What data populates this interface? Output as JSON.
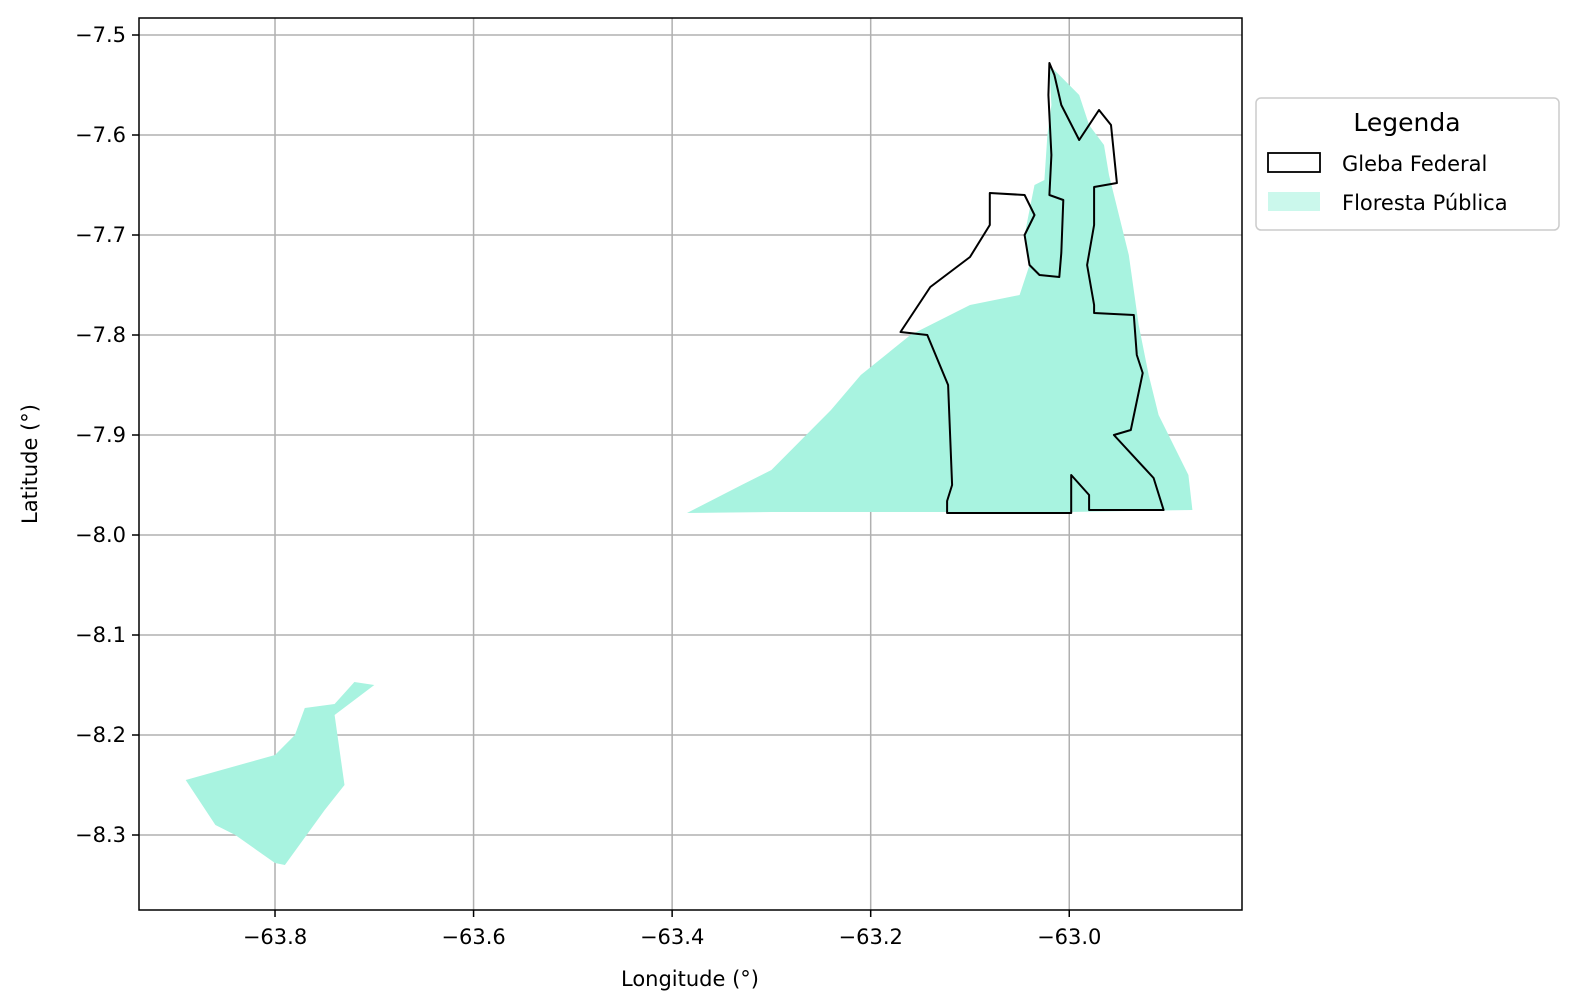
{
  "map": {
    "xlabel": "Longitude (°)",
    "ylabel": "Latitude (°)",
    "x_ticks": [
      -63.8,
      -63.6,
      -63.4,
      -63.2,
      -63.0
    ],
    "x_tick_labels": [
      "−63.8",
      "−63.6",
      "−63.4",
      "−63.2",
      "−63.0"
    ],
    "y_ticks": [
      -7.5,
      -7.6,
      -7.7,
      -7.8,
      -7.9,
      -8.0,
      -8.1,
      -8.2,
      -8.3
    ],
    "y_tick_labels": [
      "−7.5",
      "−7.6",
      "−7.7",
      "−7.8",
      "−7.9",
      "−8.0",
      "−8.1",
      "−8.2",
      "−8.3"
    ],
    "xlim": [
      -63.937,
      -62.826
    ],
    "ylim": [
      -8.375,
      -7.483
    ],
    "grid": true,
    "colors": {
      "forest": "#a8f3e0",
      "gleba_edge": "#000000",
      "grid": "#b0b0b0"
    },
    "legend": {
      "title": "Legenda",
      "placement": "outside upper-right",
      "items": [
        {
          "label": "Gleba Federal",
          "style": "outline"
        },
        {
          "label": "Floresta Pública",
          "style": "fill"
        }
      ]
    },
    "layers": {
      "floresta_publica": [
        [
          [
            -63.89,
            -8.245
          ],
          [
            -63.8,
            -8.22
          ],
          [
            -63.78,
            -8.2
          ],
          [
            -63.77,
            -8.173
          ],
          [
            -63.74,
            -8.169
          ],
          [
            -63.72,
            -8.147
          ],
          [
            -63.7,
            -8.15
          ],
          [
            -63.74,
            -8.18
          ],
          [
            -63.73,
            -8.25
          ],
          [
            -63.75,
            -8.275
          ],
          [
            -63.79,
            -8.33
          ],
          [
            -63.8,
            -8.328
          ],
          [
            -63.84,
            -8.3
          ],
          [
            -63.86,
            -8.29
          ]
        ],
        [
          [
            -63.385,
            -7.978
          ],
          [
            -63.33,
            -7.95
          ],
          [
            -63.3,
            -7.935
          ],
          [
            -63.27,
            -7.905
          ],
          [
            -63.24,
            -7.875
          ],
          [
            -63.21,
            -7.84
          ],
          [
            -63.16,
            -7.8
          ],
          [
            -63.1,
            -7.77
          ],
          [
            -63.05,
            -7.76
          ],
          [
            -63.04,
            -7.73
          ],
          [
            -63.045,
            -7.7
          ],
          [
            -63.04,
            -7.675
          ],
          [
            -63.035,
            -7.65
          ],
          [
            -63.025,
            -7.645
          ],
          [
            -63.022,
            -7.6
          ],
          [
            -63.018,
            -7.57
          ],
          [
            -63.02,
            -7.53
          ],
          [
            -63.01,
            -7.54
          ],
          [
            -62.99,
            -7.56
          ],
          [
            -62.98,
            -7.59
          ],
          [
            -62.965,
            -7.61
          ],
          [
            -62.96,
            -7.64
          ],
          [
            -62.95,
            -7.68
          ],
          [
            -62.94,
            -7.72
          ],
          [
            -62.93,
            -7.79
          ],
          [
            -62.92,
            -7.84
          ],
          [
            -62.91,
            -7.88
          ],
          [
            -62.895,
            -7.91
          ],
          [
            -62.88,
            -7.94
          ],
          [
            -62.876,
            -7.975
          ],
          [
            -63.0,
            -7.977
          ],
          [
            -63.1,
            -7.977
          ],
          [
            -63.2,
            -7.977
          ],
          [
            -63.3,
            -7.977
          ]
        ],
        [
          [
            -63.1,
            -7.93
          ],
          [
            -63.09,
            -7.95
          ],
          [
            -63.06,
            -7.95
          ],
          [
            -63.05,
            -7.92
          ],
          [
            -63.07,
            -7.905
          ]
        ],
        [
          [
            -63.25,
            -7.93
          ],
          [
            -63.22,
            -7.96
          ],
          [
            -63.19,
            -7.94
          ],
          [
            -63.2,
            -7.91
          ]
        ]
      ],
      "gleba_federal": [
        [
          [
            -63.17,
            -7.797
          ],
          [
            -63.14,
            -7.752
          ],
          [
            -63.1,
            -7.722
          ],
          [
            -63.08,
            -7.69
          ],
          [
            -63.08,
            -7.658
          ],
          [
            -63.045,
            -7.66
          ],
          [
            -63.035,
            -7.68
          ],
          [
            -63.045,
            -7.7
          ],
          [
            -63.04,
            -7.73
          ],
          [
            -63.03,
            -7.74
          ],
          [
            -63.01,
            -7.742
          ],
          [
            -63.008,
            -7.718
          ],
          [
            -63.006,
            -7.665
          ],
          [
            -63.02,
            -7.66
          ],
          [
            -63.018,
            -7.62
          ],
          [
            -63.021,
            -7.56
          ],
          [
            -63.02,
            -7.528
          ],
          [
            -63.015,
            -7.54
          ],
          [
            -63.008,
            -7.57
          ],
          [
            -62.99,
            -7.605
          ],
          [
            -62.97,
            -7.575
          ],
          [
            -62.958,
            -7.59
          ],
          [
            -62.952,
            -7.648
          ],
          [
            -62.975,
            -7.652
          ],
          [
            -62.975,
            -7.69
          ],
          [
            -62.982,
            -7.73
          ],
          [
            -62.975,
            -7.77
          ],
          [
            -62.975,
            -7.778
          ],
          [
            -62.935,
            -7.78
          ],
          [
            -62.932,
            -7.82
          ],
          [
            -62.926,
            -7.838
          ],
          [
            -62.938,
            -7.895
          ],
          [
            -62.955,
            -7.9
          ],
          [
            -62.915,
            -7.943
          ],
          [
            -62.905,
            -7.975
          ],
          [
            -62.98,
            -7.975
          ],
          [
            -62.98,
            -7.96
          ],
          [
            -62.998,
            -7.94
          ],
          [
            -62.998,
            -7.978
          ],
          [
            -63.123,
            -7.978
          ],
          [
            -63.123,
            -7.966
          ],
          [
            -63.118,
            -7.95
          ],
          [
            -63.12,
            -7.9
          ],
          [
            -63.122,
            -7.85
          ],
          [
            -63.143,
            -7.8
          ]
        ]
      ]
    }
  }
}
